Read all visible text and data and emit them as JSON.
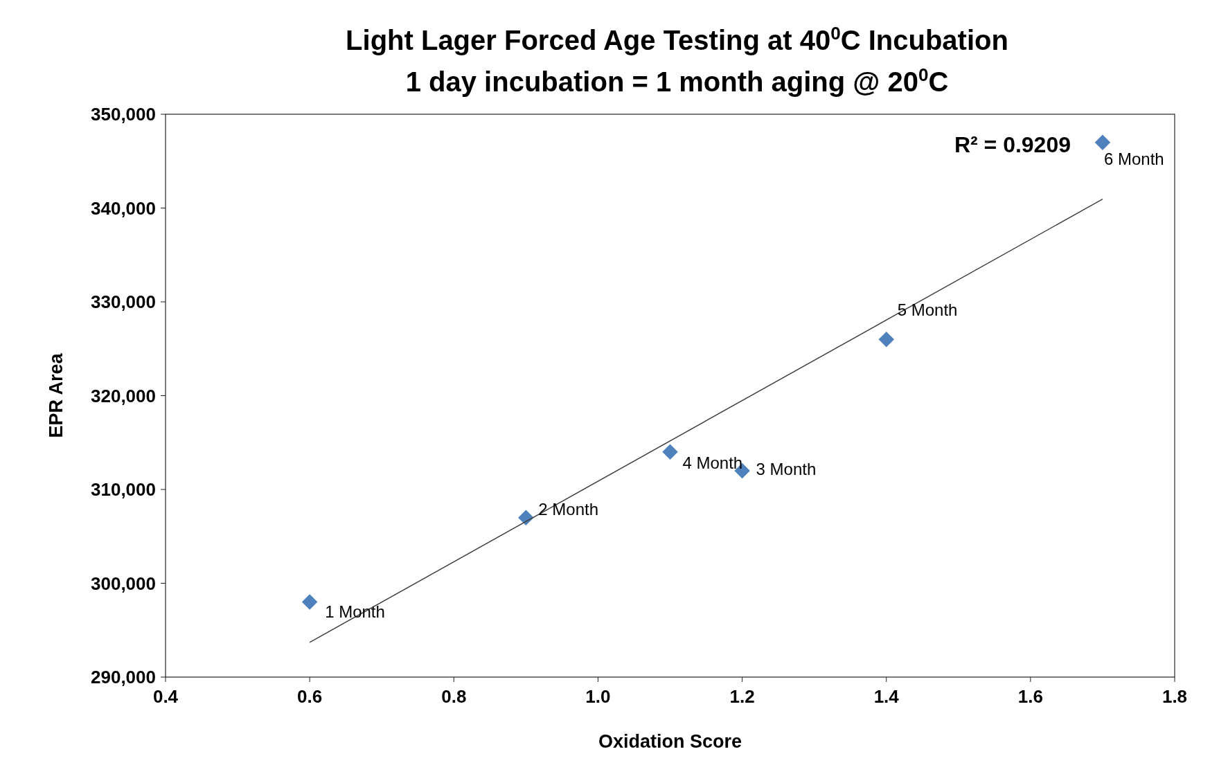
{
  "chart_data": {
    "type": "scatter",
    "title": "Light Lager Forced Age Testing at 40$^{0}$C Incubation",
    "subtitle": "1 day incubation  = 1 month aging @ 20$^{0}$C",
    "xlabel": "Oxidation Score",
    "ylabel": "EPR Area",
    "x": [
      0.6,
      0.9,
      1.1,
      1.2,
      1.4,
      1.7
    ],
    "series": [
      {
        "color": "#4f81bd",
        "marker": "diamond",
        "values": [
          298000,
          307000,
          314000,
          312000,
          326000,
          347000
        ]
      },
      {
        "type": "line",
        "color": "#404040",
        "marker": "none",
        "line_style": "solid",
        "x": [
          0.6,
          1.7
        ],
        "values": [
          293700,
          340950
        ]
      }
    ],
    "xlim": [
      0.4,
      1.8
    ],
    "ylim": [
      290000,
      350000
    ],
    "xticks": [
      {
        "value": 0.4,
        "label": "0.4"
      },
      {
        "value": 0.6,
        "label": "0.6"
      },
      {
        "value": 0.8,
        "label": "0.8"
      },
      {
        "value": 1.0,
        "label": "1.0"
      },
      {
        "value": 1.2,
        "label": "1.2"
      },
      {
        "value": 1.4,
        "label": "1.4"
      },
      {
        "value": 1.6,
        "label": "1.6"
      },
      {
        "value": 1.8,
        "label": "1.8"
      }
    ],
    "yticks": [
      {
        "value": 290000,
        "label": "290,000"
      },
      {
        "value": 300000,
        "label": "300,000"
      },
      {
        "value": 310000,
        "label": "310,000"
      },
      {
        "value": 320000,
        "label": "320,000"
      },
      {
        "value": 330000,
        "label": "330,000"
      },
      {
        "value": 340000,
        "label": "340,000"
      },
      {
        "value": 350000,
        "label": "350,000"
      }
    ],
    "grid": false,
    "annotations": [
      {
        "text": "1 Month",
        "x": 0.6,
        "y": 298000
      },
      {
        "text": "2 Month",
        "x": 0.9,
        "y": 307000
      },
      {
        "text": "4 Month",
        "x": 1.1,
        "y": 314000
      },
      {
        "text": "3 Month",
        "x": 1.2,
        "y": 312000
      },
      {
        "text": "5 Month",
        "x": 1.4,
        "y": 326000
      },
      {
        "text": "6 Month",
        "x": 1.7,
        "y": 347000
      },
      "R² = 0.9209"
    ]
  }
}
